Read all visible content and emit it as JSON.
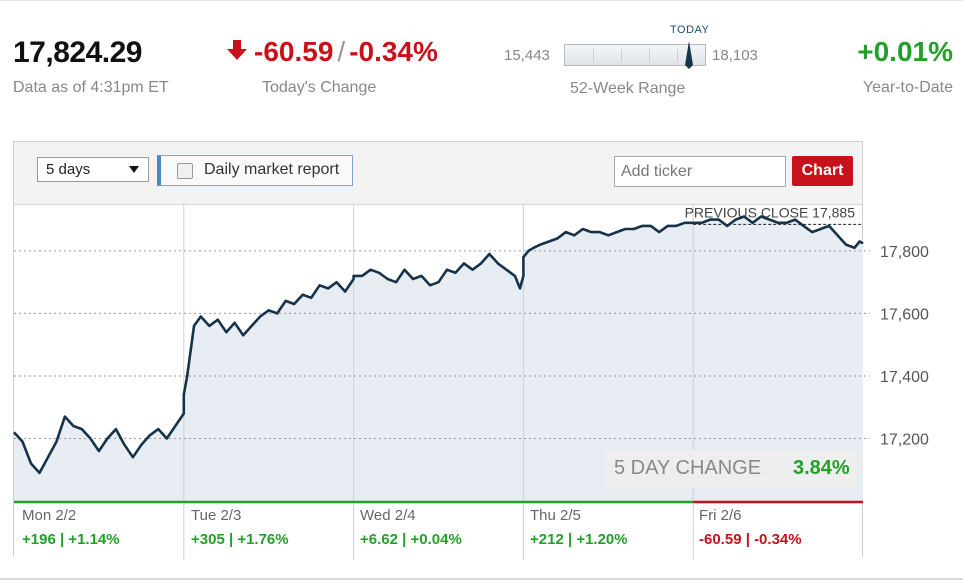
{
  "summary": {
    "price": "17,824.29",
    "as_of": "Data as of 4:31pm ET",
    "change_points": "-60.59",
    "change_separator": "/",
    "change_percent": "-0.34%",
    "change_label": "Today's Change",
    "range_low": "15,443",
    "range_high": "18,103",
    "range_today_label": "TODAY",
    "range_label": "52-Week Range",
    "range_today_position": 0.89,
    "ytd": "+0.01%",
    "ytd_label": "Year-to-Date"
  },
  "toolbar": {
    "period_selected": "5 days",
    "report_checkbox_label": "Daily market report",
    "report_checked": false,
    "ticker_placeholder": "Add ticker",
    "chart_button": "Chart"
  },
  "summary_box": {
    "label": "5 DAY CHANGE",
    "value": "3.84%"
  },
  "days": [
    {
      "label": "Mon 2/2",
      "change": "+196 | +1.14%",
      "direction": "up"
    },
    {
      "label": "Tue 2/3",
      "change": "+305 | +1.76%",
      "direction": "up"
    },
    {
      "label": "Wed 2/4",
      "change": "+6.62 | +0.04%",
      "direction": "up"
    },
    {
      "label": "Thu 2/5",
      "change": "+212 | +1.20%",
      "direction": "up"
    },
    {
      "label": "Fri 2/6",
      "change": "-60.59 | -0.34%",
      "direction": "down"
    }
  ],
  "colors": {
    "up": "#22a02a",
    "down": "#c8111a",
    "line": "#17334a",
    "fill": "#e8edf3",
    "button": "#c8111a"
  },
  "icons": {
    "change_direction": "down-arrow-icon",
    "range_marker": "today-marker-icon"
  },
  "chart_data": {
    "type": "area",
    "ylim": [
      17000,
      17950
    ],
    "yticks": [
      17200,
      17400,
      17600,
      17800
    ],
    "ytick_labels": [
      "17,200",
      "17,400",
      "17,600",
      "17,800"
    ],
    "previous_close": 17885,
    "previous_close_label": "PREVIOUS CLOSE 17,885",
    "days": [
      "Mon 2/2",
      "Tue 2/3",
      "Wed 2/4",
      "Thu 2/5",
      "Fri 2/6"
    ],
    "x": [
      0,
      0.05,
      0.1,
      0.15,
      0.2,
      0.25,
      0.3,
      0.35,
      0.4,
      0.45,
      0.5,
      0.55,
      0.6,
      0.65,
      0.7,
      0.75,
      0.8,
      0.85,
      0.9,
      0.95,
      1.0,
      1.0,
      1.02,
      1.06,
      1.1,
      1.15,
      1.2,
      1.25,
      1.3,
      1.35,
      1.4,
      1.45,
      1.5,
      1.55,
      1.6,
      1.65,
      1.7,
      1.75,
      1.8,
      1.85,
      1.9,
      1.95,
      2.0,
      2.0,
      2.05,
      2.1,
      2.15,
      2.2,
      2.25,
      2.3,
      2.35,
      2.4,
      2.45,
      2.5,
      2.55,
      2.6,
      2.65,
      2.7,
      2.75,
      2.8,
      2.85,
      2.9,
      2.95,
      2.98,
      3.0,
      3.0,
      3.03,
      3.06,
      3.1,
      3.15,
      3.2,
      3.25,
      3.3,
      3.35,
      3.4,
      3.45,
      3.5,
      3.55,
      3.6,
      3.65,
      3.7,
      3.75,
      3.8,
      3.85,
      3.9,
      3.95,
      4.0,
      4.0,
      4.05,
      4.1,
      4.15,
      4.2,
      4.25,
      4.3,
      4.35,
      4.4,
      4.45,
      4.5,
      4.55,
      4.6,
      4.65,
      4.7,
      4.75,
      4.8,
      4.85,
      4.9,
      4.95,
      4.98,
      5.0
    ],
    "y": [
      17220,
      17190,
      17120,
      17090,
      17140,
      17190,
      17270,
      17240,
      17230,
      17200,
      17160,
      17200,
      17230,
      17180,
      17140,
      17180,
      17210,
      17230,
      17200,
      17240,
      17280,
      17340,
      17400,
      17560,
      17590,
      17560,
      17580,
      17540,
      17570,
      17530,
      17560,
      17590,
      17610,
      17600,
      17640,
      17630,
      17660,
      17650,
      17690,
      17680,
      17700,
      17670,
      17710,
      17720,
      17720,
      17740,
      17730,
      17710,
      17700,
      17740,
      17710,
      17720,
      17690,
      17700,
      17740,
      17730,
      17760,
      17740,
      17760,
      17790,
      17760,
      17740,
      17720,
      17680,
      17720,
      17780,
      17800,
      17810,
      17820,
      17830,
      17840,
      17860,
      17850,
      17870,
      17860,
      17860,
      17850,
      17860,
      17870,
      17870,
      17880,
      17880,
      17860,
      17880,
      17880,
      17890,
      17890,
      17890,
      17890,
      17900,
      17900,
      17880,
      17900,
      17910,
      17890,
      17910,
      17900,
      17890,
      17890,
      17900,
      17880,
      17860,
      17870,
      17880,
      17850,
      17820,
      17810,
      17830,
      17824
    ]
  }
}
